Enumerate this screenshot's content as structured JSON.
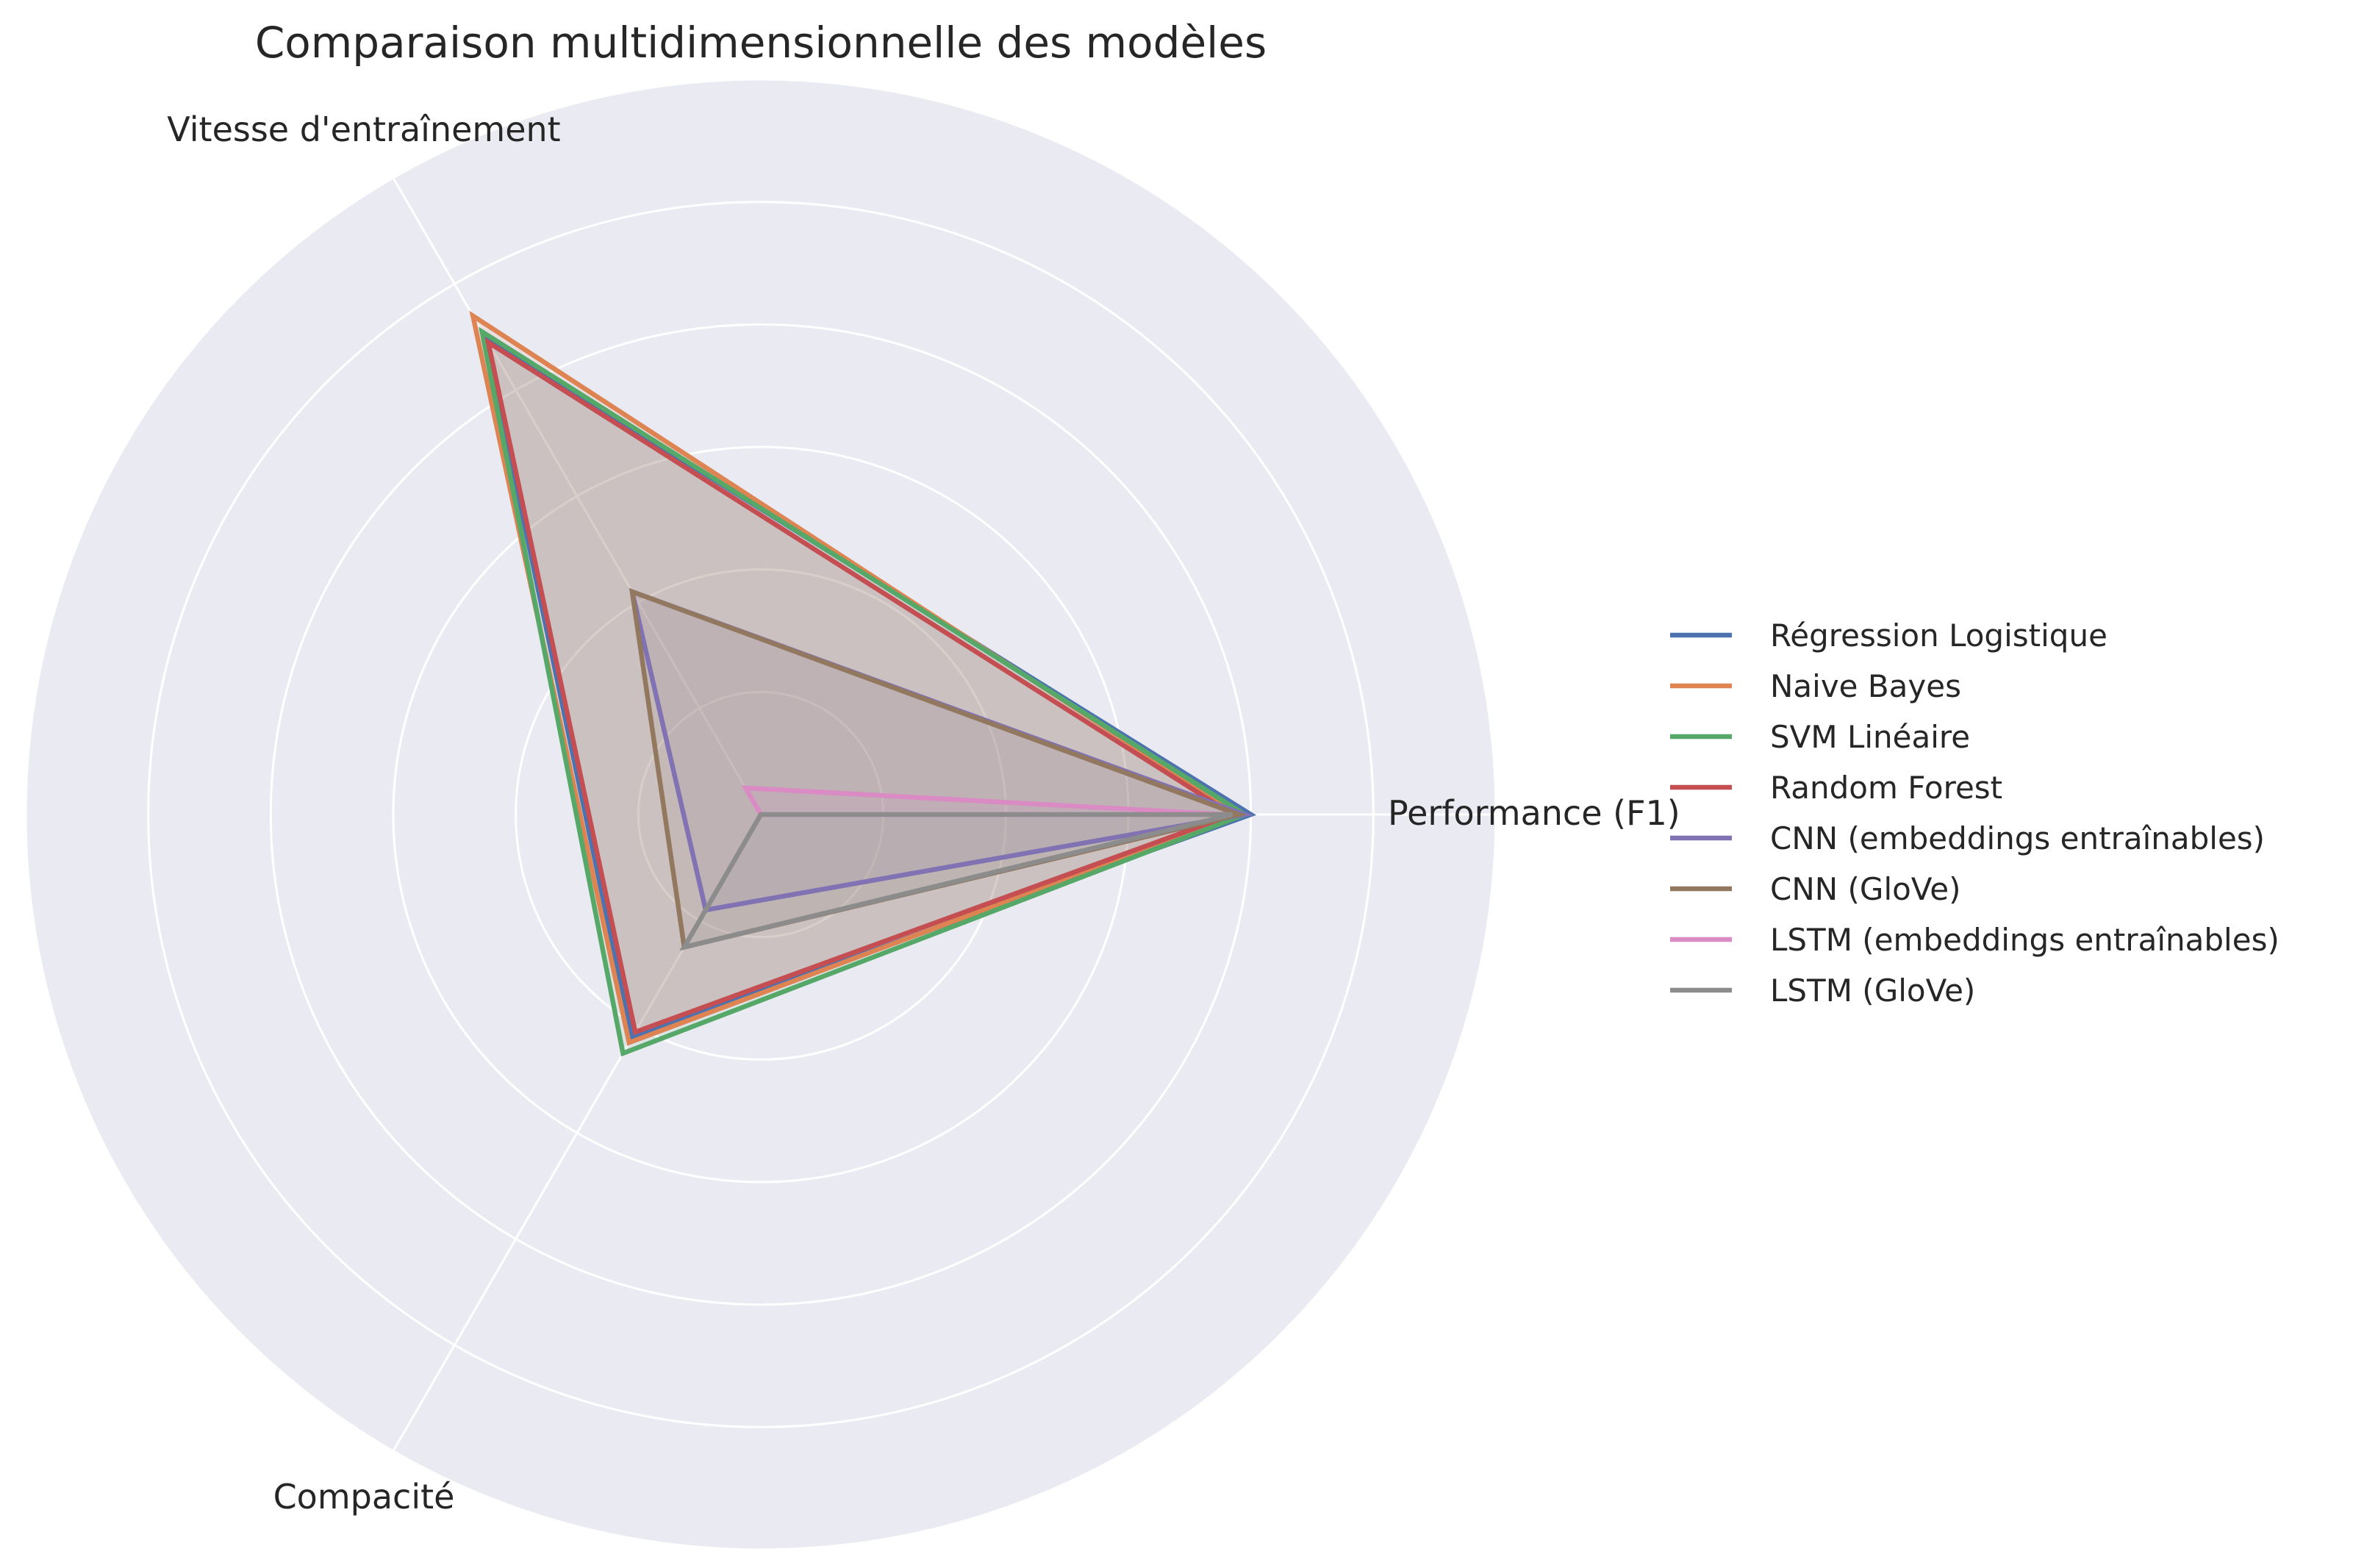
{
  "chart_data": {
    "type": "radar",
    "title": "Comparaison multidimensionnelle des modèles",
    "axes": [
      "Performance (F1)",
      "Vitesse d'entraînement",
      "Compacité"
    ],
    "rlim": [
      0,
      1.2
    ],
    "grid": true,
    "legend_placement": "right",
    "series": [
      {
        "name": "Régression Logistique",
        "values": [
          0.8,
          0.9,
          0.42
        ],
        "color": "#4c72b0"
      },
      {
        "name": "Naive Bayes",
        "values": [
          0.78,
          0.94,
          0.43
        ],
        "color": "#dd8452"
      },
      {
        "name": "SVM Linéaire",
        "values": [
          0.79,
          0.91,
          0.45
        ],
        "color": "#55a868"
      },
      {
        "name": "Random Forest",
        "values": [
          0.77,
          0.89,
          0.41
        ],
        "color": "#c44e52"
      },
      {
        "name": "CNN (embeddings entraînables)",
        "values": [
          0.79,
          0.42,
          0.18
        ],
        "color": "#8172b3"
      },
      {
        "name": "CNN (GloVe)",
        "values": [
          0.78,
          0.42,
          0.25
        ],
        "color": "#937860"
      },
      {
        "name": "LSTM (embeddings entraînables)",
        "values": [
          0.76,
          0.05,
          0.0
        ],
        "color": "#da8bc3"
      },
      {
        "name": "LSTM (GloVe)",
        "values": [
          0.77,
          0.0,
          0.25
        ],
        "color": "#8c8c8c"
      }
    ]
  }
}
